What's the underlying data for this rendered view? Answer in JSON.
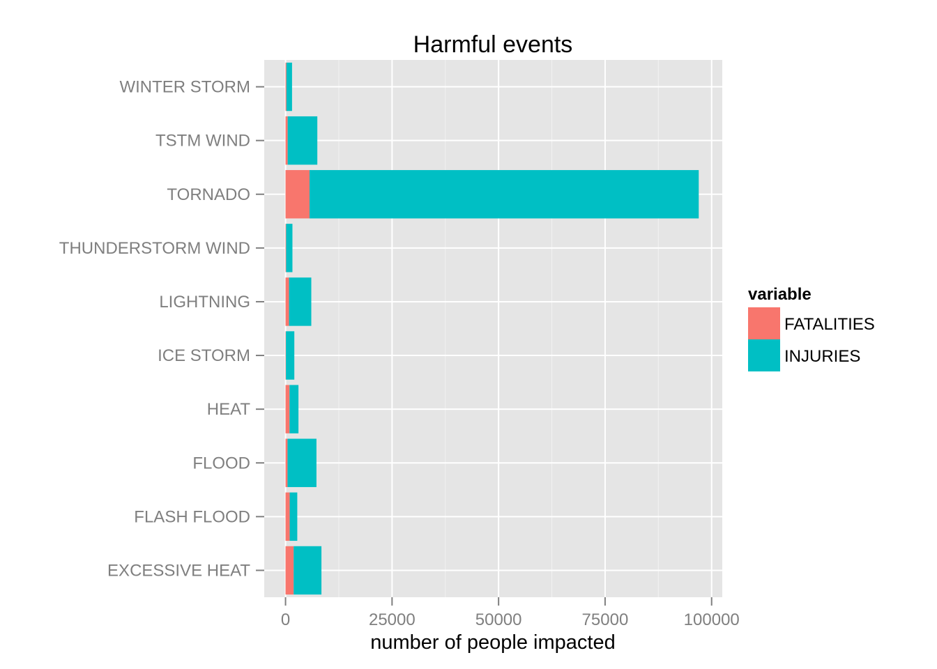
{
  "chart_data": {
    "type": "bar",
    "orientation": "horizontal",
    "stacked": true,
    "title": "Harmful events",
    "xlabel": "number of people impacted",
    "ylabel": "",
    "xlim": [
      -5000,
      102500
    ],
    "x_ticks": [
      0,
      25000,
      50000,
      75000,
      100000
    ],
    "x_tick_labels": [
      "0",
      "25000",
      "50000",
      "75000",
      "100000"
    ],
    "categories": [
      "EXCESSIVE HEAT",
      "FLASH FLOOD",
      "FLOOD",
      "HEAT",
      "ICE STORM",
      "LIGHTNING",
      "THUNDERSTORM WIND",
      "TORNADO",
      "TSTM WIND",
      "WINTER STORM"
    ],
    "series": [
      {
        "name": "FATALITIES",
        "color": "#F8766D",
        "values": [
          1903,
          978,
          470,
          937,
          89,
          816,
          133,
          5633,
          504,
          206
        ]
      },
      {
        "name": "INJURIES",
        "color": "#00BFC4",
        "values": [
          6525,
          1777,
          6789,
          2100,
          1975,
          5230,
          1488,
          91346,
          6957,
          1321
        ]
      }
    ],
    "legend": {
      "title": "variable",
      "position": "right"
    },
    "grid": true,
    "panel_background": "#E5E5E5",
    "grid_color": "#FFFFFF"
  }
}
